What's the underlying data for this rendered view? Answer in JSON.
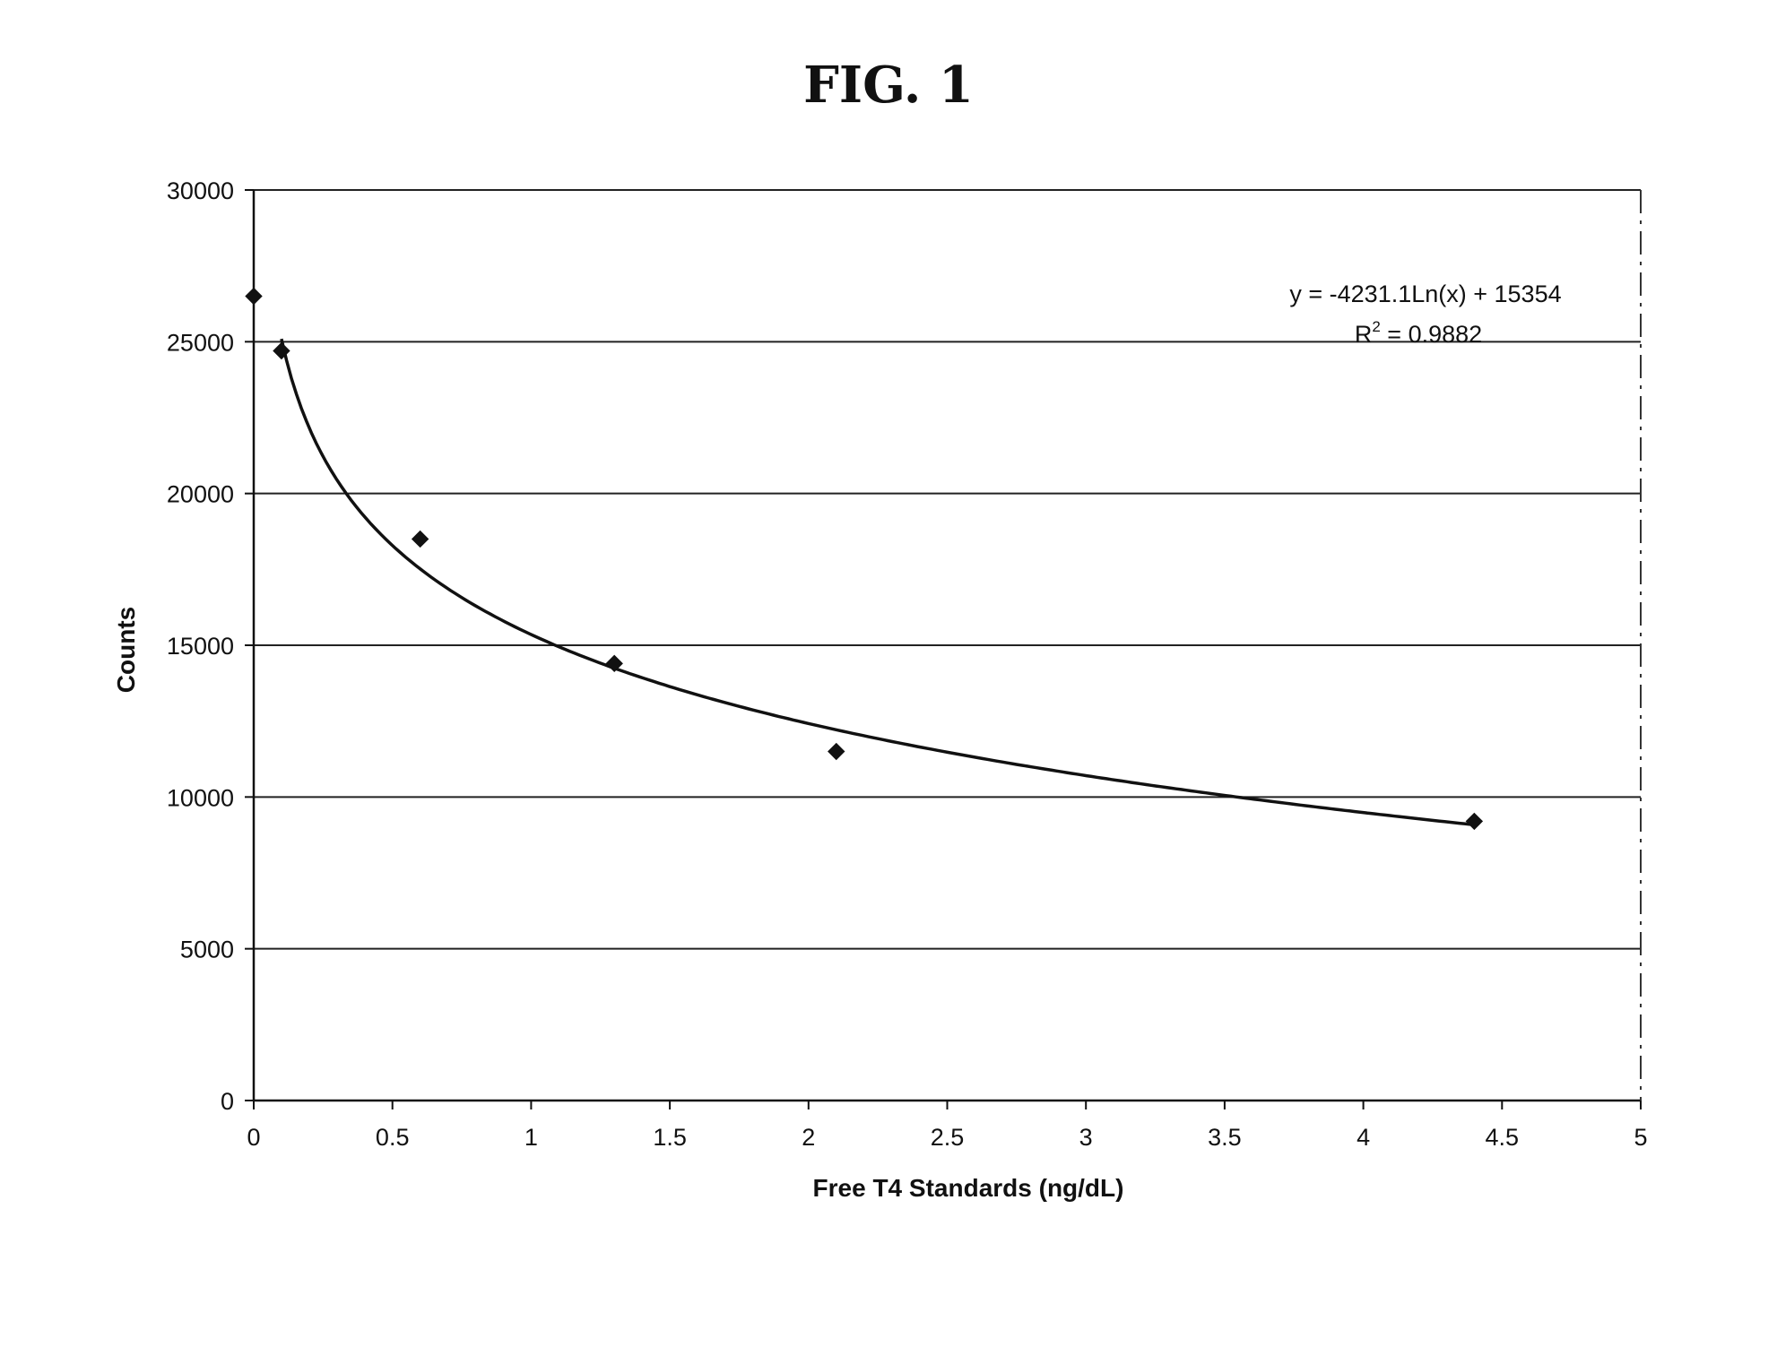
{
  "figure": {
    "title": "FIG. 1"
  },
  "chart_data": {
    "type": "scatter",
    "xlabel": "Free T4 Standards (ng/dL)",
    "ylabel": "Counts",
    "xlim": [
      0,
      5
    ],
    "ylim": [
      0,
      30000
    ],
    "x_ticks": [
      "0",
      "0.5",
      "1",
      "1.5",
      "2",
      "2.5",
      "3",
      "3.5",
      "4",
      "4.5",
      "5"
    ],
    "y_ticks": [
      "0",
      "5000",
      "10000",
      "15000",
      "20000",
      "25000",
      "30000"
    ],
    "grid": true,
    "points": [
      {
        "x": 0.0,
        "y": 26500
      },
      {
        "x": 0.1,
        "y": 24700
      },
      {
        "x": 0.6,
        "y": 18500
      },
      {
        "x": 1.3,
        "y": 14400
      },
      {
        "x": 2.1,
        "y": 11500
      },
      {
        "x": 4.4,
        "y": 9200
      }
    ],
    "trendline": {
      "type": "logarithmic",
      "a": -4231.1,
      "b": 15354,
      "x_start": 0.1,
      "x_end": 4.4,
      "equation": "y = -4231.1Ln(x) + 15354",
      "r2_label": "R",
      "r2_sup": "2",
      "r2_value": " = 0.9882"
    }
  }
}
